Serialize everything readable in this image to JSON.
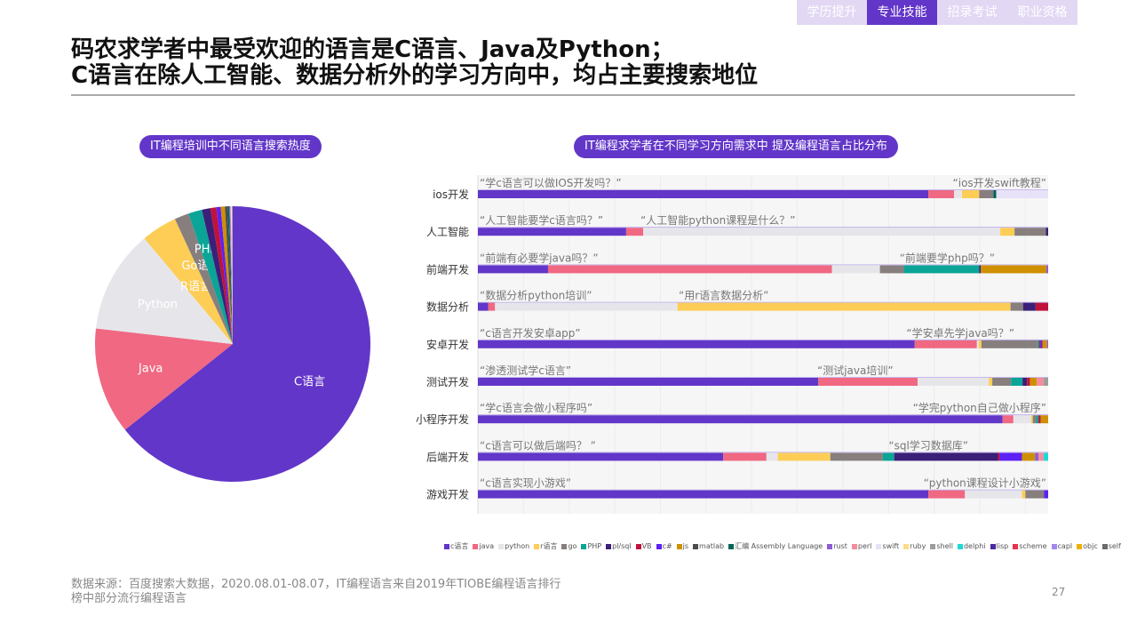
{
  "nav": {
    "tabs": [
      {
        "label": "学历提升",
        "active": false
      },
      {
        "label": "专业技能",
        "active": true
      },
      {
        "label": "招录考试",
        "active": false
      },
      {
        "label": "职业资格",
        "active": false
      }
    ]
  },
  "title": {
    "line1": "码农求学者中最受欢迎的语言是C语言、Java及Python；",
    "line2": "C语言在除人工智能、数据分析外的学习方向中，均占主要搜索地位"
  },
  "colors": {
    "c语言": "#6236c8",
    "java": "#f06882",
    "python": "#e6e6ea",
    "r语言": "#fdcd56",
    "go": "#877f7d",
    "PHP": "#0aa597",
    "pl/sql": "#3b1f78",
    "VB": "#c0123c",
    "c#": "#5b21f5",
    "js": "#cf9000",
    "matlab": "#4d4d4d",
    "汇编 Assembly Language": "#006657",
    "rust": "#8b5cd6",
    "perl": "#f48c9c",
    "swift": "#e7e2f8",
    "ruby": "#fddb8a",
    "shell": "#a09c9c",
    "delphi": "#1ed9d4",
    "lisp": "#4b2a9e",
    "scheme": "#e8334f",
    "capl": "#a487f0",
    "objc": "#f1b000",
    "self": "#6b6b6b"
  },
  "chart_data": [
    {
      "type": "pie",
      "title": "IT编程培训中不同语言搜索热度",
      "unit": "%",
      "slices": [
        {
          "name": "c语言",
          "label": "C语言",
          "value": 64.3
        },
        {
          "name": "java",
          "label": "Java",
          "value": 12.5
        },
        {
          "name": "python",
          "label": "Python",
          "value": 12.1
        },
        {
          "name": "r语言",
          "label": "R语言",
          "value": 4.2
        },
        {
          "name": "go",
          "label": "Go语言",
          "value": 1.7
        },
        {
          "name": "PHP",
          "label": "PHP",
          "value": 1.6
        },
        {
          "name": "pl/sql",
          "value": 1.0
        },
        {
          "name": "VB",
          "value": 0.7
        },
        {
          "name": "c#",
          "value": 0.5
        },
        {
          "name": "js",
          "value": 0.5
        },
        {
          "name": "matlab",
          "value": 0.3
        },
        {
          "name": "汇编 Assembly Language",
          "value": 0.2
        },
        {
          "name": "rust",
          "value": 0.1
        },
        {
          "name": "perl",
          "value": 0.1
        },
        {
          "name": "swift",
          "value": 0.1
        },
        {
          "name": "shell",
          "value": 0.1
        }
      ]
    },
    {
      "type": "bar",
      "stacked": "100%",
      "orientation": "horizontal",
      "title": "IT编程求学者在不同学习方向需求中 提及编程语言占比分布",
      "grid": true,
      "legend": "bottom",
      "series_names": [
        "c语言",
        "java",
        "python",
        "r语言",
        "go",
        "PHP",
        "pl/sql",
        "VB",
        "c#",
        "js",
        "matlab",
        "汇编 Assembly Language",
        "rust",
        "perl",
        "swift",
        "ruby",
        "shell",
        "delphi",
        "lisp",
        "scheme",
        "capl",
        "objc",
        "self"
      ],
      "rows": [
        {
          "category": "ios开发",
          "annotations": [
            "“学c语言可以做IOS开发吗？”",
            "“ios开发swift教程”"
          ],
          "values": {
            "c语言": 79,
            "java": 4.5,
            "python": 1.4,
            "r语言": 3,
            "go": 2.5,
            "汇编 Assembly Language": 0.5,
            "swift": 9.1
          }
        },
        {
          "category": "人工智能",
          "annotations": [
            "“人工智能要学c语言吗？”",
            "“人工智能python课程是什么？”"
          ],
          "values": {
            "c语言": 26,
            "java": 3,
            "python": 62.6,
            "r语言": 2.5,
            "go": 5.5,
            "pl/sql": 0.4
          }
        },
        {
          "category": "前端开发",
          "annotations": [
            "“前端有必要学java吗？”",
            "“前端要学php吗？”"
          ],
          "values": {
            "c语言": 12.3,
            "java": 49.8,
            "python": 8.4,
            "go": 4.2,
            "PHP": 13.2,
            "pl/sql": 0.3,
            "js": 11.5,
            "rust": 0.3
          }
        },
        {
          "category": "数据分析",
          "annotations": [
            "“数据分析python培训”",
            "“用r语言数据分析”"
          ],
          "values": {
            "c语言": 1.8,
            "java": 1.2,
            "python": 32,
            "r语言": 58.4,
            "go": 2.2,
            "pl/sql": 2.2,
            "VB": 2.2
          }
        },
        {
          "category": "安卓开发",
          "annotations": [
            "“c语言开发安卓app”",
            "“学安卓先学java吗？”"
          ],
          "values": {
            "c语言": 76.6,
            "java": 10.9,
            "python": 0.3,
            "r语言": 0.5,
            "go": 9.8,
            "VB": 0.3,
            "js": 0.8,
            "PHP": 0.3,
            "c#": 0.3,
            "rust": 0.2
          }
        },
        {
          "category": "测试开发",
          "annotations": [
            "“渗透测试学c语言”",
            "“测试java培训”"
          ],
          "values": {
            "c语言": 59.7,
            "java": 17.4,
            "python": 12.5,
            "r语言": 0.6,
            "go": 3.3,
            "PHP": 2,
            "pl/sql": 0.8,
            "VB": 0.5,
            "js": 1.2,
            "perl": 1.2,
            "shell": 0.8
          }
        },
        {
          "category": "小程序开发",
          "annotations": [
            "“学c语言会做小程序吗”",
            "“学完python自己做小程序”"
          ],
          "values": {
            "c语言": 92,
            "java": 1.9,
            "python": 3.1,
            "r语言": 0.3,
            "go": 0.6,
            "PHP": 0.4,
            "VB": 0.4,
            "js": 1.3
          }
        },
        {
          "category": "后端开发",
          "annotations": [
            "“c语言可以做后端吗？ ”",
            "“sql学习数据库”"
          ],
          "values": {
            "c语言": 43,
            "java": 7.6,
            "python": 2,
            "r语言": 9.2,
            "go": 9.2,
            "PHP": 2,
            "pl/sql": 18.2,
            "VB": 0.3,
            "c#": 3.9,
            "js": 2.3,
            "rust": 0.6,
            "perl": 0.9,
            "delphi": 0.8
          }
        },
        {
          "category": "游戏开发",
          "annotations": [
            "“c语言实现小游戏”",
            "“python课程设计小游戏”"
          ],
          "values": {
            "c语言": 79,
            "java": 6.4,
            "python": 10,
            "r语言": 0.6,
            "go": 3.3,
            "c#": 0.7
          }
        }
      ]
    }
  ],
  "legend": [
    "c语言",
    "java",
    "python",
    "r语言",
    "go",
    "PHP",
    "pl/sql",
    "VB",
    "c#",
    "js",
    "matlab",
    "汇编 Assembly Language",
    "rust",
    "perl",
    "swift",
    "ruby",
    "shell",
    "delphi",
    "lisp",
    "scheme",
    "capl",
    "objc",
    "self"
  ],
  "footer": {
    "source": "数据来源：百度搜索大数据，2020.08.01-08.07，IT编程语言来自2019年TIOBE编程语言排行榜中部分流行编程语言",
    "page": "27"
  }
}
